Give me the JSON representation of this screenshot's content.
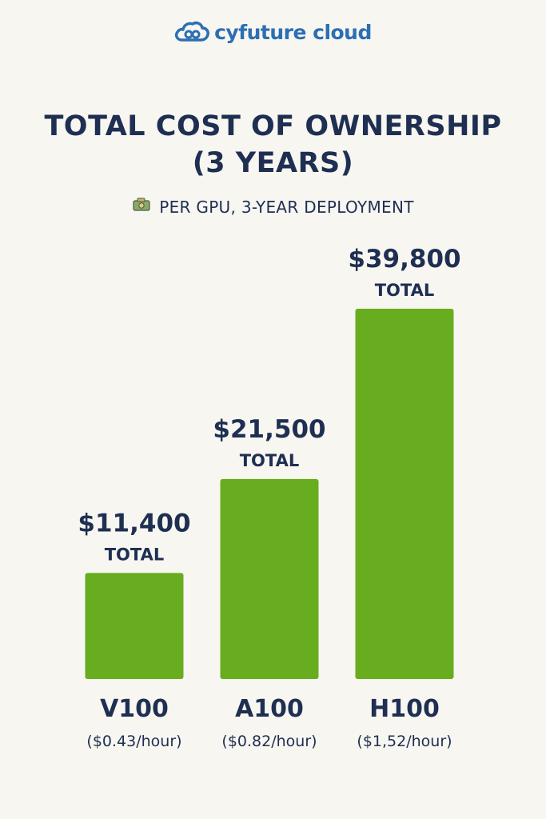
{
  "brand": {
    "name": "cyfuture cloud",
    "color": "#2c6fb3"
  },
  "heading": {
    "line1": "TOTAL COST OF OWNERSHIP",
    "line2": "(3 YEARS)"
  },
  "subheading": {
    "text": "PER GPU, 3-YEAR DEPLOYMENT",
    "icon": "money-icon"
  },
  "chart_data": {
    "type": "bar",
    "categories": [
      "V100",
      "A100",
      "H100"
    ],
    "values": [
      11400,
      21500,
      39800
    ],
    "value_labels": [
      "$11,400",
      "$21,500",
      "$39,800"
    ],
    "value_suffix": "TOTAL",
    "rates": [
      "($0.43/hour)",
      "($0.82/hour)",
      "($1,52/hour)"
    ],
    "title": "TOTAL COST OF OWNERSHIP (3 YEARS)",
    "xlabel": "",
    "ylabel": "",
    "grid": false,
    "bar_color": "#67ad1f"
  }
}
